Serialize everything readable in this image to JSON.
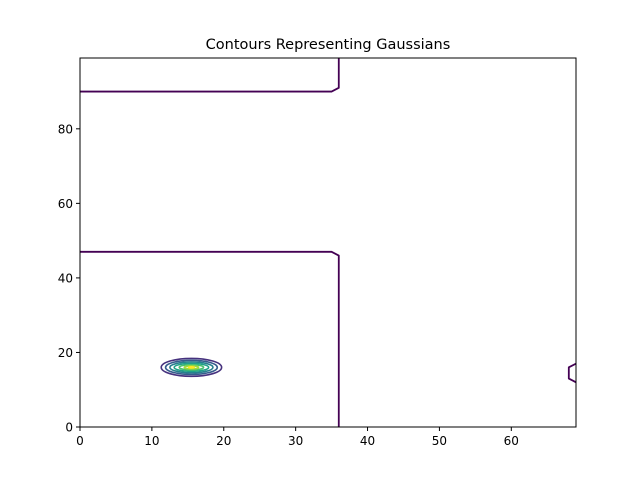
{
  "chart_data": {
    "type": "contour",
    "title": "Contours Representing Gaussians",
    "xlabel": "",
    "ylabel": "",
    "xlim": [
      0,
      69
    ],
    "ylim": [
      0,
      99
    ],
    "xticks": [
      0,
      10,
      20,
      30,
      40,
      50,
      60
    ],
    "yticks": [
      0,
      20,
      40,
      60,
      80
    ],
    "grid": false,
    "legend": "none",
    "colormap": "viridis",
    "boundary_lines": [
      {
        "level": "lowest",
        "color": "#440154",
        "points": [
          [
            0,
            90
          ],
          [
            35,
            90
          ],
          [
            36,
            91
          ],
          [
            36,
            99
          ]
        ]
      },
      {
        "level": "lowest",
        "color": "#440154",
        "points": [
          [
            0,
            47
          ],
          [
            35,
            47
          ],
          [
            36,
            46
          ],
          [
            36,
            0
          ]
        ]
      },
      {
        "level": "lowest",
        "color": "#440154",
        "points": [
          [
            69,
            17
          ],
          [
            68,
            16
          ],
          [
            68,
            13
          ],
          [
            69,
            12
          ]
        ]
      }
    ],
    "gaussian_peak": {
      "center": [
        15.5,
        16
      ],
      "rings": [
        {
          "color": "#46327e",
          "rx": 4.2,
          "ry": 2.4
        },
        {
          "color": "#365c8d",
          "rx": 3.6,
          "ry": 1.9
        },
        {
          "color": "#277f8e",
          "rx": 3.0,
          "ry": 1.45
        },
        {
          "color": "#1fa187",
          "rx": 2.4,
          "ry": 1.05
        },
        {
          "color": "#4ac16d",
          "rx": 1.7,
          "ry": 0.7
        },
        {
          "color": "#a0da39",
          "rx": 1.0,
          "ry": 0.4
        },
        {
          "color": "#fde725",
          "rx": 0.4,
          "ry": 0.15
        }
      ]
    }
  }
}
